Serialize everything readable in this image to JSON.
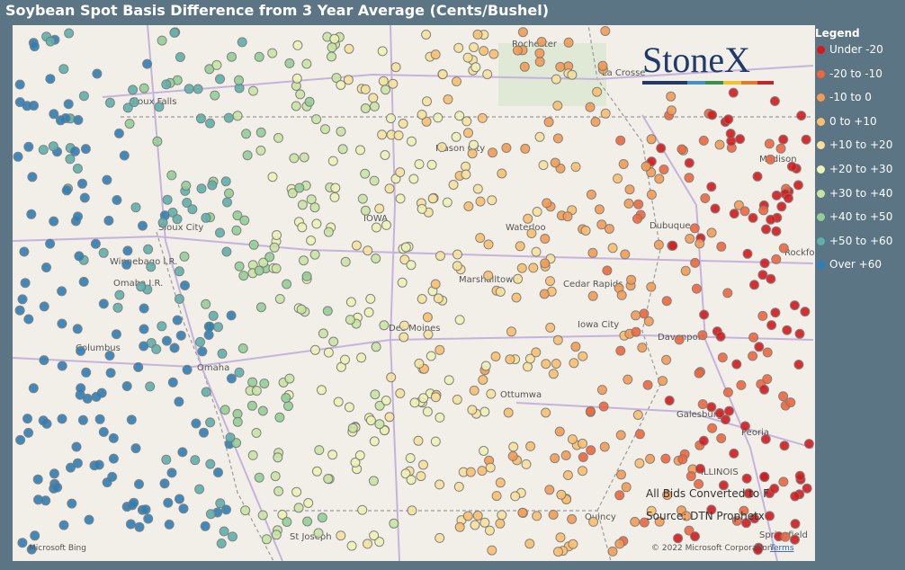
{
  "title": "Soybean Spot Basis Difference from 3 Year Average (Cents/Bushel)",
  "legend": {
    "title": "Legend",
    "items": [
      {
        "label": "Under -20",
        "color": "#d7191c"
      },
      {
        "label": "-20 to -10",
        "color": "#f2653a"
      },
      {
        "label": "-10 to 0",
        "color": "#f59b52"
      },
      {
        "label": "0 to +10",
        "color": "#fbbf6c"
      },
      {
        "label": "+10 to +20",
        "color": "#f7e19a"
      },
      {
        "label": "+20 to +30",
        "color": "#eef3b4"
      },
      {
        "label": "+30 to +40",
        "color": "#c8e4a2"
      },
      {
        "label": "+40 to +50",
        "color": "#92cf95"
      },
      {
        "label": "+50 to +60",
        "color": "#5eb0ac"
      },
      {
        "label": "Over +60",
        "color": "#2c7fb8"
      }
    ]
  },
  "logo": "StoneX",
  "places": [
    "Rochester",
    "La Crosse",
    "Sioux Falls",
    "Mason City",
    "IOWA",
    "Waterloo",
    "Dubuque",
    "Sioux City",
    "Marshalltown",
    "Cedar Rapids",
    "Iowa City",
    "Davenport",
    "Des Moines",
    "Omaha",
    "Columbus",
    "Ottumwa",
    "Galesburg",
    "Peoria",
    "ILLINOIS",
    "Quincy",
    "St Joseph",
    "Springfield",
    "Madison",
    "Rockford",
    "Winnebago I.R.",
    "Omaha I.R."
  ],
  "notes": [
    "All Bids Converted to F",
    "Source: DTN Prophetx"
  ],
  "attribution": {
    "provider": "Microsoft Bing",
    "copyright": "© 2022 Microsoft Corporation",
    "terms": "Terms"
  }
}
